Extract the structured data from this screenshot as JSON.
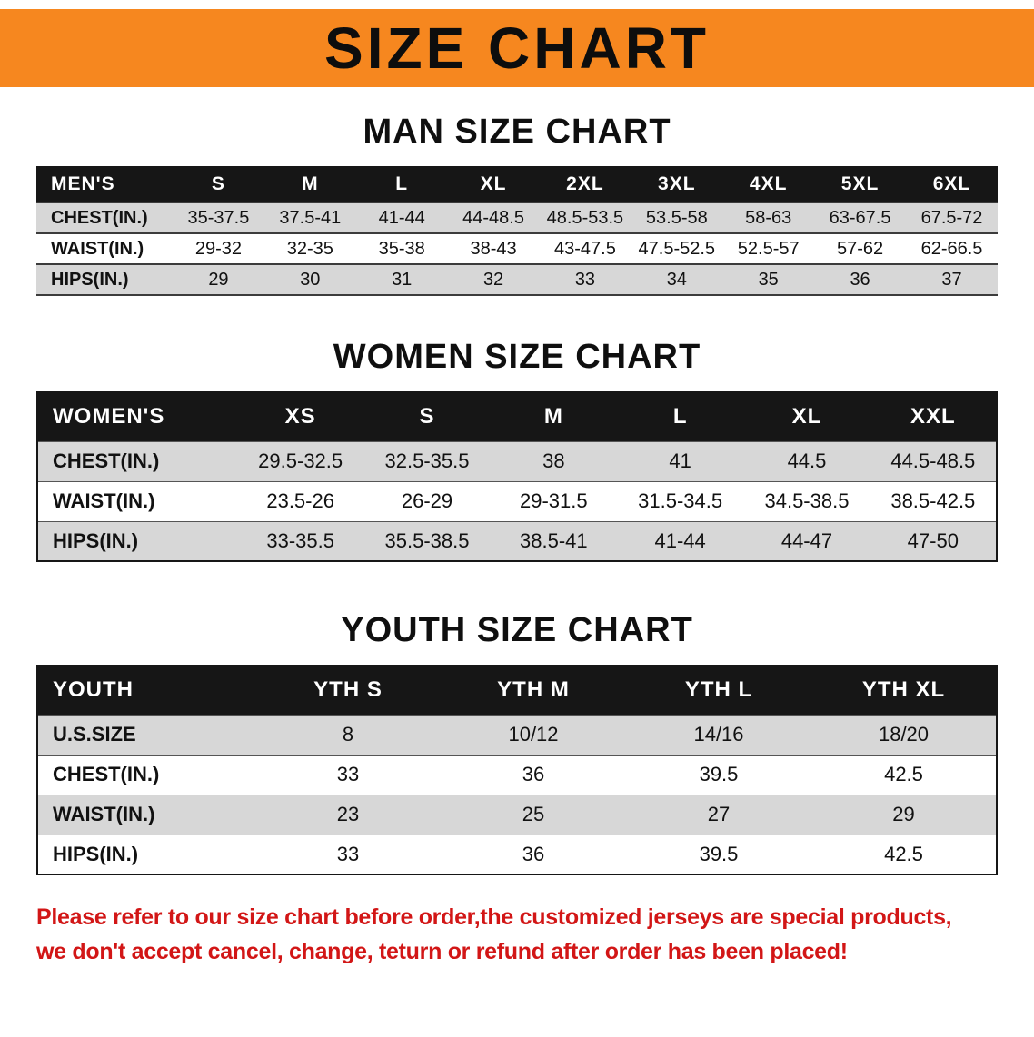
{
  "banner": {
    "title": "SIZE CHART"
  },
  "colors": {
    "banner_bg": "#f6871f",
    "table_header_bg": "#161616",
    "row_alt": "#d7d7d7",
    "footer_text": "#d21616"
  },
  "chart_data": [
    {
      "type": "table",
      "title": "MAN SIZE CHART",
      "header": [
        "MEN'S",
        "S",
        "M",
        "L",
        "XL",
        "2XL",
        "3XL",
        "4XL",
        "5XL",
        "6XL"
      ],
      "rows": [
        [
          "CHEST(IN.)",
          "35-37.5",
          "37.5-41",
          "41-44",
          "44-48.5",
          "48.5-53.5",
          "53.5-58",
          "58-63",
          "63-67.5",
          "67.5-72"
        ],
        [
          "WAIST(IN.)",
          "29-32",
          "32-35",
          "35-38",
          "38-43",
          "43-47.5",
          "47.5-52.5",
          "52.5-57",
          "57-62",
          "62-66.5"
        ],
        [
          "HIPS(IN.)",
          "29",
          "30",
          "31",
          "32",
          "33",
          "34",
          "35",
          "36",
          "37"
        ]
      ]
    },
    {
      "type": "table",
      "title": "WOMEN SIZE CHART",
      "header": [
        "WOMEN'S",
        "XS",
        "S",
        "M",
        "L",
        "XL",
        "XXL"
      ],
      "rows": [
        [
          "CHEST(IN.)",
          "29.5-32.5",
          "32.5-35.5",
          "38",
          "41",
          "44.5",
          "44.5-48.5"
        ],
        [
          "WAIST(IN.)",
          "23.5-26",
          "26-29",
          "29-31.5",
          "31.5-34.5",
          "34.5-38.5",
          "38.5-42.5"
        ],
        [
          "HIPS(IN.)",
          "33-35.5",
          "35.5-38.5",
          "38.5-41",
          "41-44",
          "44-47",
          "47-50"
        ]
      ]
    },
    {
      "type": "table",
      "title": "YOUTH SIZE CHART",
      "header": [
        "YOUTH",
        "YTH S",
        "YTH M",
        "YTH L",
        "YTH XL"
      ],
      "rows": [
        [
          "U.S.SIZE",
          "8",
          "10/12",
          "14/16",
          "18/20"
        ],
        [
          "CHEST(IN.)",
          "33",
          "36",
          "39.5",
          "42.5"
        ],
        [
          "WAIST(IN.)",
          "23",
          "25",
          "27",
          "29"
        ],
        [
          "HIPS(IN.)",
          "33",
          "36",
          "39.5",
          "42.5"
        ]
      ]
    }
  ],
  "footer": {
    "line1": "Please refer to our size chart before order,the customized jerseys are special products,",
    "line2": "we don't accept cancel, change, teturn or refund after order has been placed!"
  }
}
